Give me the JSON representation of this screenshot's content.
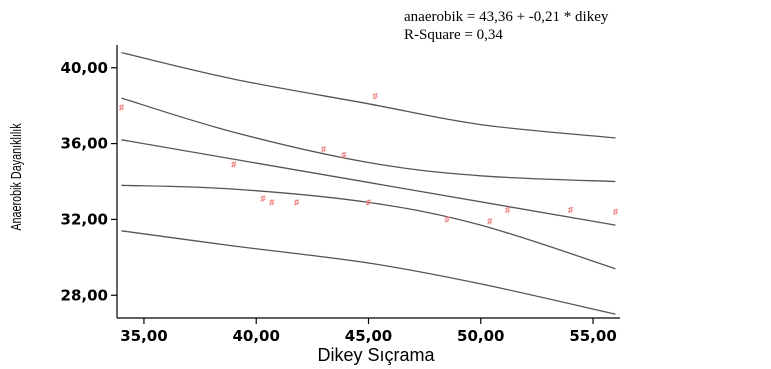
{
  "chart_data": {
    "type": "scatter",
    "xlabel": "Dikey Sıçrama",
    "ylabel": "Anaerobik Dayanıklılık",
    "xlim": [
      33.8,
      56.2
    ],
    "ylim": [
      26.8,
      41.2
    ],
    "x_ticks": [
      35,
      40,
      45,
      50,
      55
    ],
    "x_tick_labels": [
      "35,00",
      "40,00",
      "45,00",
      "50,00",
      "55,00"
    ],
    "y_ticks": [
      28,
      32,
      36,
      40
    ],
    "y_tick_labels": [
      "28,00",
      "32,00",
      "36,00",
      "40,00"
    ],
    "grid": false,
    "annotations": [
      "anaerobik = 43,36 + -0,21 * dikey",
      "R-Square = 0,34"
    ],
    "regression": {
      "intercept": 43.36,
      "slope": -0.21
    },
    "points": [
      {
        "x": 34.0,
        "y": 37.9
      },
      {
        "x": 39.0,
        "y": 34.9
      },
      {
        "x": 40.3,
        "y": 33.1
      },
      {
        "x": 40.7,
        "y": 32.9
      },
      {
        "x": 41.8,
        "y": 32.9
      },
      {
        "x": 43.0,
        "y": 35.7
      },
      {
        "x": 43.9,
        "y": 35.4
      },
      {
        "x": 45.0,
        "y": 32.9
      },
      {
        "x": 45.3,
        "y": 38.5
      },
      {
        "x": 48.5,
        "y": 32.0
      },
      {
        "x": 50.4,
        "y": 31.9
      },
      {
        "x": 51.2,
        "y": 32.5
      },
      {
        "x": 54.0,
        "y": 32.5
      },
      {
        "x": 56.0,
        "y": 32.4
      }
    ],
    "bands": [
      {
        "name": "upper-prediction",
        "x": [
          34,
          39,
          45,
          50,
          56
        ],
        "y": [
          40.8,
          39.4,
          38.1,
          37.0,
          36.3
        ]
      },
      {
        "name": "upper-confidence",
        "x": [
          34,
          39,
          45,
          50,
          56
        ],
        "y": [
          38.4,
          36.6,
          35.0,
          34.3,
          34.0
        ]
      },
      {
        "name": "fit-line",
        "x": [
          34,
          56
        ],
        "y": [
          36.2,
          31.7
        ]
      },
      {
        "name": "lower-confidence",
        "x": [
          34,
          39,
          45,
          50,
          56
        ],
        "y": [
          33.8,
          33.6,
          32.9,
          31.7,
          29.4
        ]
      },
      {
        "name": "lower-prediction",
        "x": [
          34,
          39,
          45,
          50,
          56
        ],
        "y": [
          31.4,
          30.6,
          29.7,
          28.6,
          27.0
        ]
      }
    ],
    "colors": {
      "points": "#f08a8a",
      "lines": "#555555",
      "axes": "#000000"
    }
  }
}
